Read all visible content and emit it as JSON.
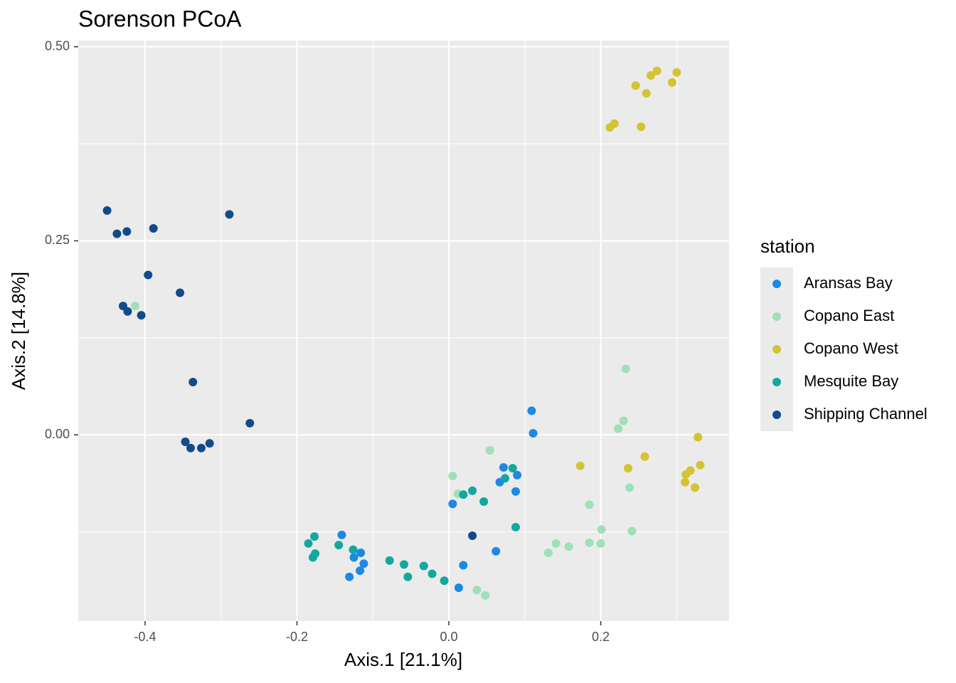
{
  "chart_data": {
    "type": "scatter",
    "title": "Sorenson PCoA",
    "x_label": "Axis.1   [21.1%]",
    "y_label": "Axis.2   [14.8%]",
    "legend_title": "station",
    "xlim": [
      -0.488,
      0.369
    ],
    "ylim": [
      -0.24,
      0.508
    ],
    "xticks": [
      -0.4,
      -0.2,
      {
        "value": 0,
        "label": "0.0"
      },
      0.2
    ],
    "yticks": [
      {
        "value": 0,
        "label": "0.00"
      },
      0.25,
      {
        "value": 0.5,
        "label": "0.50"
      }
    ],
    "grid": true,
    "legend": "right",
    "series": [
      {
        "name": "Aransas Bay",
        "color": "#1e88e5",
        "x": [
          0.109,
          0.111,
          0.072,
          0.09,
          0.067,
          0.088,
          0.005,
          0.062,
          0.019,
          0.013,
          -0.141,
          -0.116,
          -0.125,
          -0.112,
          -0.117,
          -0.131
        ],
        "values": [
          0.031,
          0.002,
          -0.042,
          -0.052,
          -0.061,
          -0.073,
          -0.089,
          -0.15,
          -0.168,
          -0.197,
          -0.129,
          -0.152,
          -0.158,
          -0.166,
          -0.175,
          -0.183
        ]
      },
      {
        "name": "Copano East",
        "color": "#9ee0b8",
        "x": [
          -0.413,
          0.233,
          0.23,
          0.223,
          0.054,
          0.005,
          0.012,
          0.238,
          0.185,
          0.201,
          0.241,
          0.141,
          0.158,
          0.185,
          0.2,
          0.131,
          0.037,
          0.048
        ],
        "values": [
          0.166,
          0.085,
          0.018,
          0.008,
          -0.02,
          -0.053,
          -0.076,
          -0.068,
          -0.09,
          -0.122,
          -0.124,
          -0.14,
          -0.144,
          -0.139,
          -0.14,
          -0.152,
          -0.2,
          -0.207
        ]
      },
      {
        "name": "Copano West",
        "color": "#d4c332",
        "x": [
          0.246,
          0.266,
          0.274,
          0.3,
          0.294,
          0.26,
          0.212,
          0.218,
          0.253,
          0.328,
          0.258,
          0.173,
          0.236,
          0.331,
          0.318,
          0.312,
          0.311,
          0.324
        ],
        "values": [
          0.45,
          0.463,
          0.469,
          0.467,
          0.454,
          0.44,
          0.396,
          0.401,
          0.397,
          -0.003,
          -0.028,
          -0.04,
          -0.043,
          -0.039,
          -0.046,
          -0.051,
          -0.061,
          -0.068
        ]
      },
      {
        "name": "Mesquite Bay",
        "color": "#12a8a0",
        "x": [
          -0.177,
          -0.185,
          -0.176,
          -0.179,
          -0.145,
          -0.126,
          -0.078,
          -0.059,
          -0.054,
          -0.033,
          -0.022,
          -0.006,
          0.031,
          0.019,
          0.046,
          0.074,
          0.084,
          0.088
        ],
        "values": [
          -0.131,
          -0.14,
          -0.153,
          -0.158,
          -0.142,
          -0.148,
          -0.162,
          -0.167,
          -0.183,
          -0.169,
          -0.179,
          -0.188,
          -0.072,
          -0.077,
          -0.086,
          -0.056,
          -0.043,
          -0.119
        ]
      },
      {
        "name": "Shipping Channel",
        "color": "#114b8a",
        "x": [
          -0.45,
          -0.437,
          -0.424,
          -0.389,
          -0.289,
          -0.396,
          -0.354,
          -0.429,
          -0.423,
          -0.405,
          -0.337,
          -0.262,
          -0.347,
          -0.34,
          -0.326,
          -0.315,
          0.031
        ],
        "values": [
          0.289,
          0.259,
          0.262,
          0.266,
          0.284,
          0.206,
          0.183,
          0.166,
          0.159,
          0.154,
          0.068,
          0.015,
          -0.009,
          -0.017,
          -0.017,
          -0.011,
          -0.13
        ]
      }
    ]
  }
}
